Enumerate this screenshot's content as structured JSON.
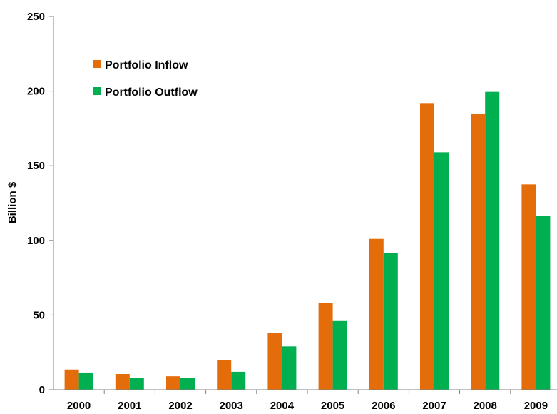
{
  "chart_data": {
    "type": "bar",
    "title": "",
    "xlabel": "",
    "ylabel": "Billion $",
    "ylim": [
      0,
      250
    ],
    "yticks": [
      "0",
      "50",
      "100",
      "150",
      "200",
      "250"
    ],
    "grid": false,
    "legend_position": "top-left",
    "categories": [
      "2000",
      "2001",
      "2002",
      "2003",
      "2004",
      "2005",
      "2006",
      "2007",
      "2008",
      "2009"
    ],
    "series": [
      {
        "name": "Portfolio Inflow",
        "color": "#E46C0A",
        "values": [
          13.5,
          10.5,
          9,
          20,
          38,
          58,
          101,
          192,
          184.5,
          137.5
        ]
      },
      {
        "name": "Portfolio Outflow",
        "color": "#00B050",
        "values": [
          11.5,
          8,
          8,
          12,
          29,
          46,
          91.5,
          159,
          199.5,
          116.5
        ]
      }
    ]
  }
}
